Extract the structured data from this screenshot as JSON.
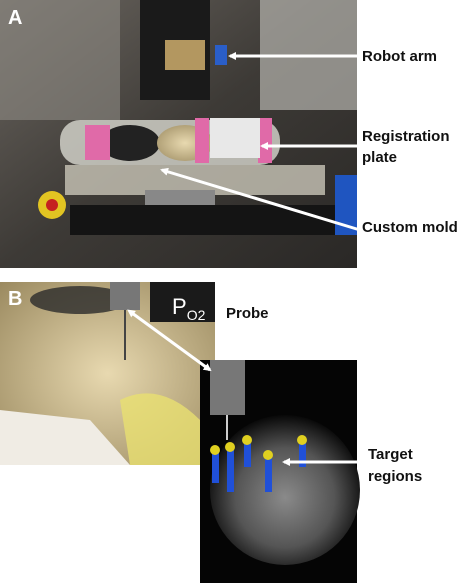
{
  "panel_a": {
    "label": "A",
    "annotations": [
      {
        "lines": [
          "Robot arm"
        ]
      },
      {
        "lines": [
          "Registration",
          "plate"
        ]
      },
      {
        "lines": [
          "Custom mold"
        ]
      }
    ]
  },
  "panel_b": {
    "label": "B",
    "probe": "Probe",
    "po2": {
      "symbol": "P",
      "subscript": "O2"
    },
    "annotations": [
      {
        "lines": [
          "Target",
          "regions"
        ]
      }
    ]
  }
}
